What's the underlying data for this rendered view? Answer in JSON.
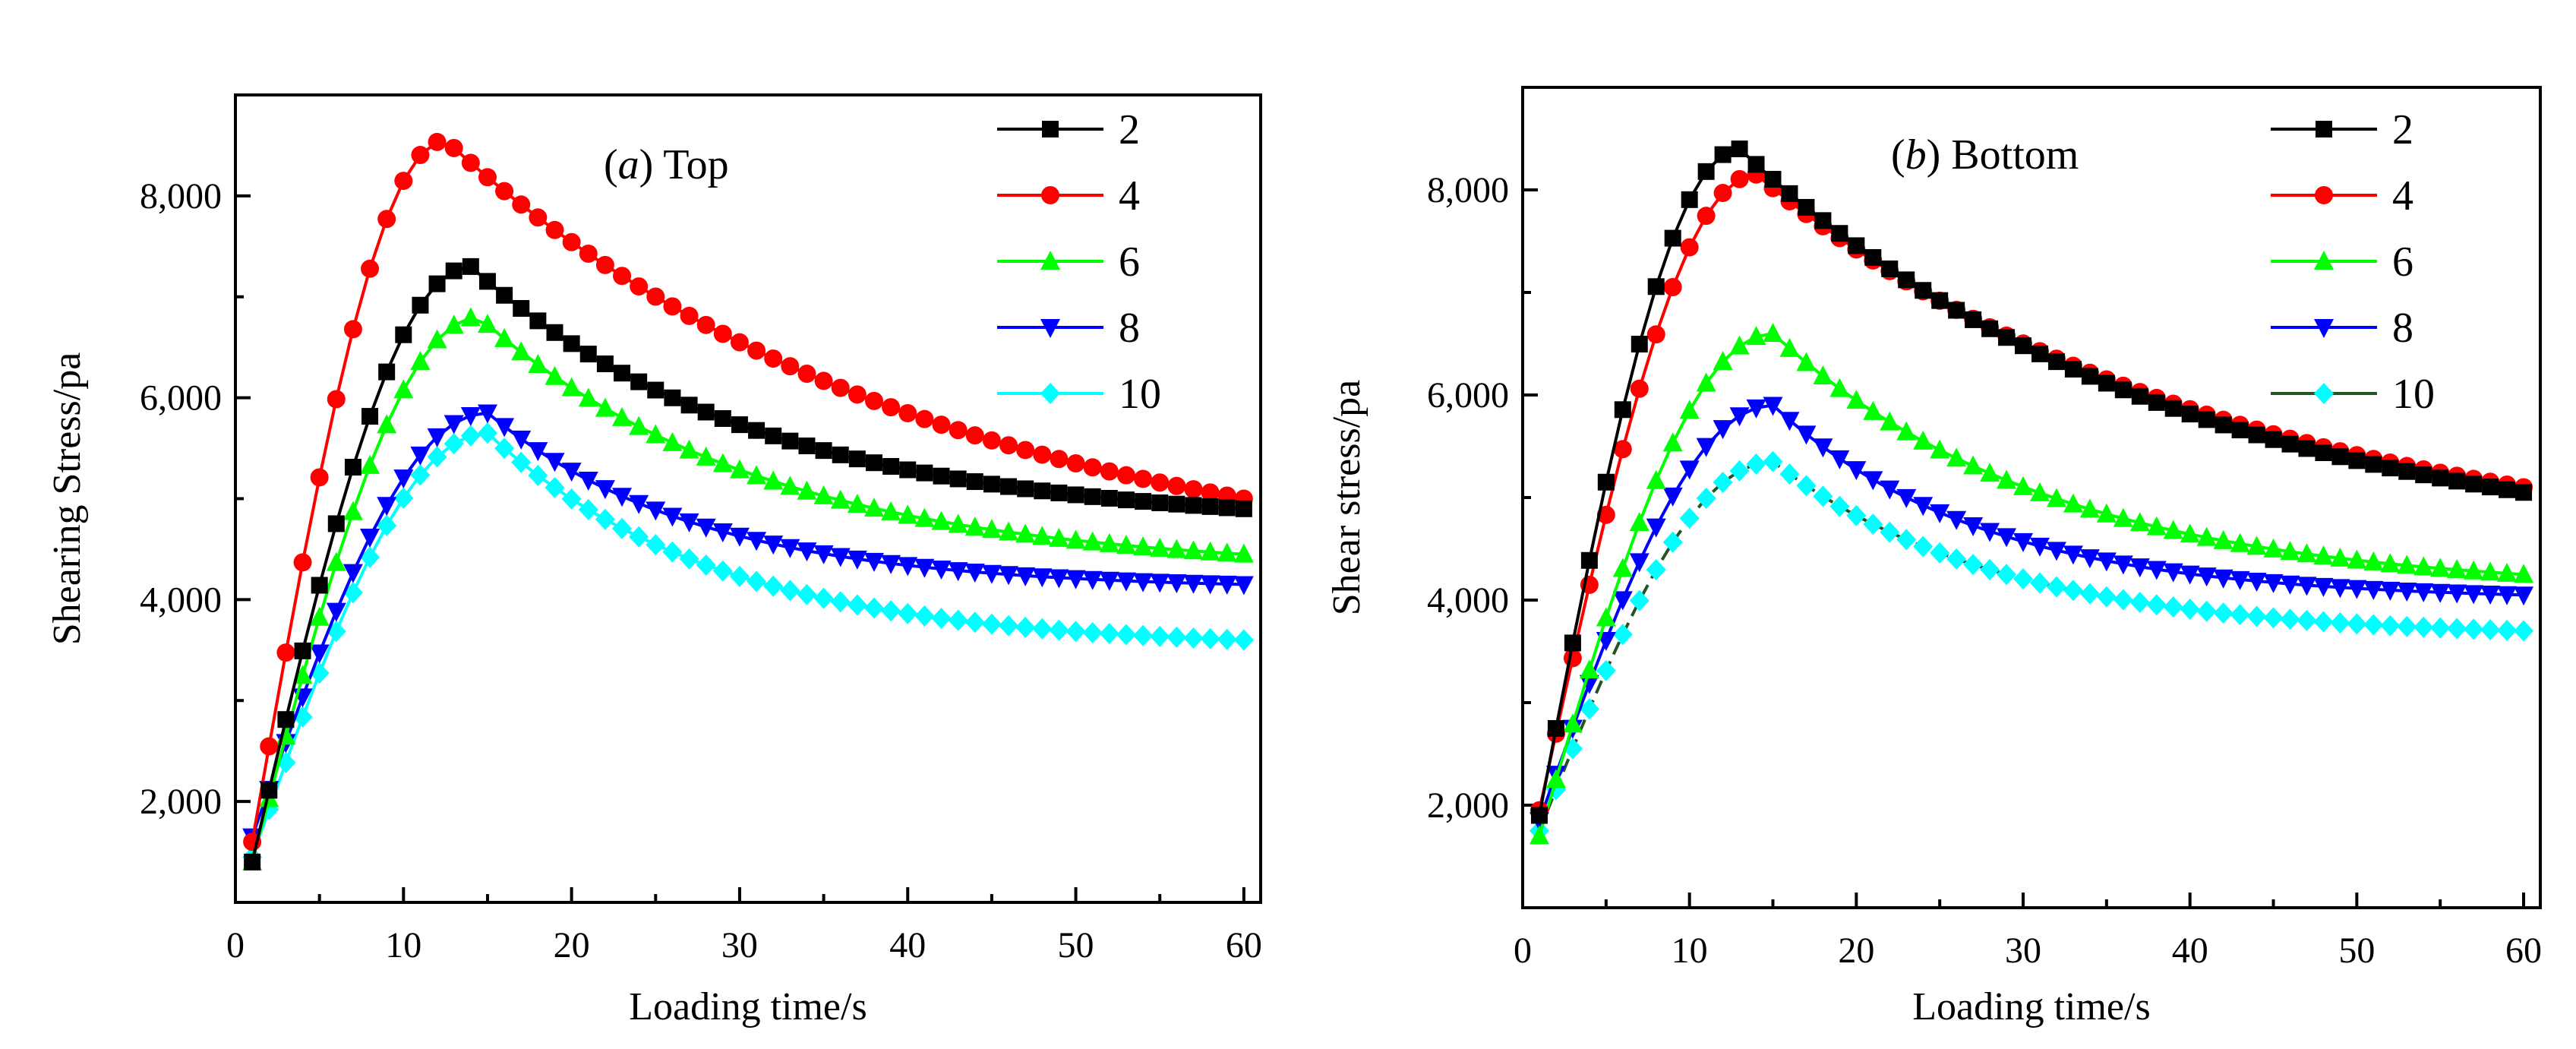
{
  "colors": {
    "s2": "#000000",
    "s4": "#ff0000",
    "s6": "#00ff00",
    "s8": "#0000ff",
    "s10": "#00ffff",
    "s10_line": "#225522",
    "axis": "#000000",
    "background": "#ffffff"
  },
  "chart_data": [
    {
      "type": "line",
      "panel": "a",
      "title": {
        "prefix": "(",
        "letter": "a",
        "suffix": ")",
        "name": "Top"
      },
      "xlabel": "Loading time/s",
      "ylabel": "Shearing Stress/pa",
      "xlim": [
        0,
        61
      ],
      "ylim": [
        1000,
        9000
      ],
      "xticks": [
        0,
        10,
        20,
        30,
        40,
        50,
        60
      ],
      "xtick_labels": [
        "0",
        "10",
        "20",
        "30",
        "40",
        "50",
        "60"
      ],
      "yticks": [
        2000,
        4000,
        6000,
        8000
      ],
      "ytick_labels": [
        "2,000",
        "4,000",
        "6,000",
        "8,000"
      ],
      "legend_position": "top-right",
      "curve_params": [
        {
          "key": "2",
          "marker": "square",
          "y0": 1400,
          "peak": 7300,
          "tp": 14,
          "yEnd": 4900,
          "k": 0.9
        },
        {
          "key": "4",
          "marker": "circle",
          "y0": 1600,
          "peak": 8550,
          "tp": 12.5,
          "yEnd": 5000,
          "k": 0.55
        },
        {
          "key": "6",
          "marker": "triangle-up",
          "y0": 1400,
          "peak": 6800,
          "tp": 14.5,
          "yEnd": 4450,
          "k": 0.9
        },
        {
          "key": "8",
          "marker": "triangle-down",
          "y0": 1650,
          "peak": 5850,
          "tp": 15,
          "yEnd": 4150,
          "k": 1.2
        },
        {
          "key": "10",
          "marker": "diamond",
          "y0": 1450,
          "peak": 5650,
          "tp": 15,
          "yEnd": 3600,
          "k": 1.1
        }
      ]
    },
    {
      "type": "line",
      "panel": "b",
      "title": {
        "prefix": "(",
        "letter": "b",
        "suffix": ")",
        "name": "Bottom"
      },
      "xlabel": "Loading time/s",
      "ylabel": "Shear stress/pa",
      "xlim": [
        0,
        61
      ],
      "ylim": [
        1000,
        9000
      ],
      "xticks": [
        0,
        10,
        20,
        30,
        40,
        50,
        60
      ],
      "xtick_labels": [
        "0",
        "10",
        "20",
        "30",
        "40",
        "50",
        "60"
      ],
      "yticks": [
        2000,
        4000,
        6000,
        8000
      ],
      "ytick_labels": [
        "2,000",
        "4,000",
        "6,000",
        "8,000"
      ],
      "legend_position": "top-right",
      "curve_params": [
        {
          "key": "2",
          "marker": "square",
          "y0": 1900,
          "peak": 8400,
          "tp": 13,
          "yEnd": 5050,
          "k": 0.6
        },
        {
          "key": "4",
          "marker": "circle",
          "y0": 1950,
          "peak": 8150,
          "tp": 14,
          "yEnd": 5100,
          "k": 0.55
        },
        {
          "key": "6",
          "marker": "triangle-up",
          "y0": 1700,
          "peak": 6600,
          "tp": 15,
          "yEnd": 4250,
          "k": 0.9
        },
        {
          "key": "8",
          "marker": "triangle-down",
          "y0": 1850,
          "peak": 5900,
          "tp": 15,
          "yEnd": 4050,
          "k": 1.2
        },
        {
          "key": "10",
          "marker": "diamond",
          "y0": 1750,
          "peak": 5350,
          "tp": 15,
          "yEnd": 3700,
          "k": 1.1
        }
      ]
    }
  ],
  "legend": {
    "labels": [
      "2",
      "4",
      "6",
      "8",
      "10"
    ]
  }
}
